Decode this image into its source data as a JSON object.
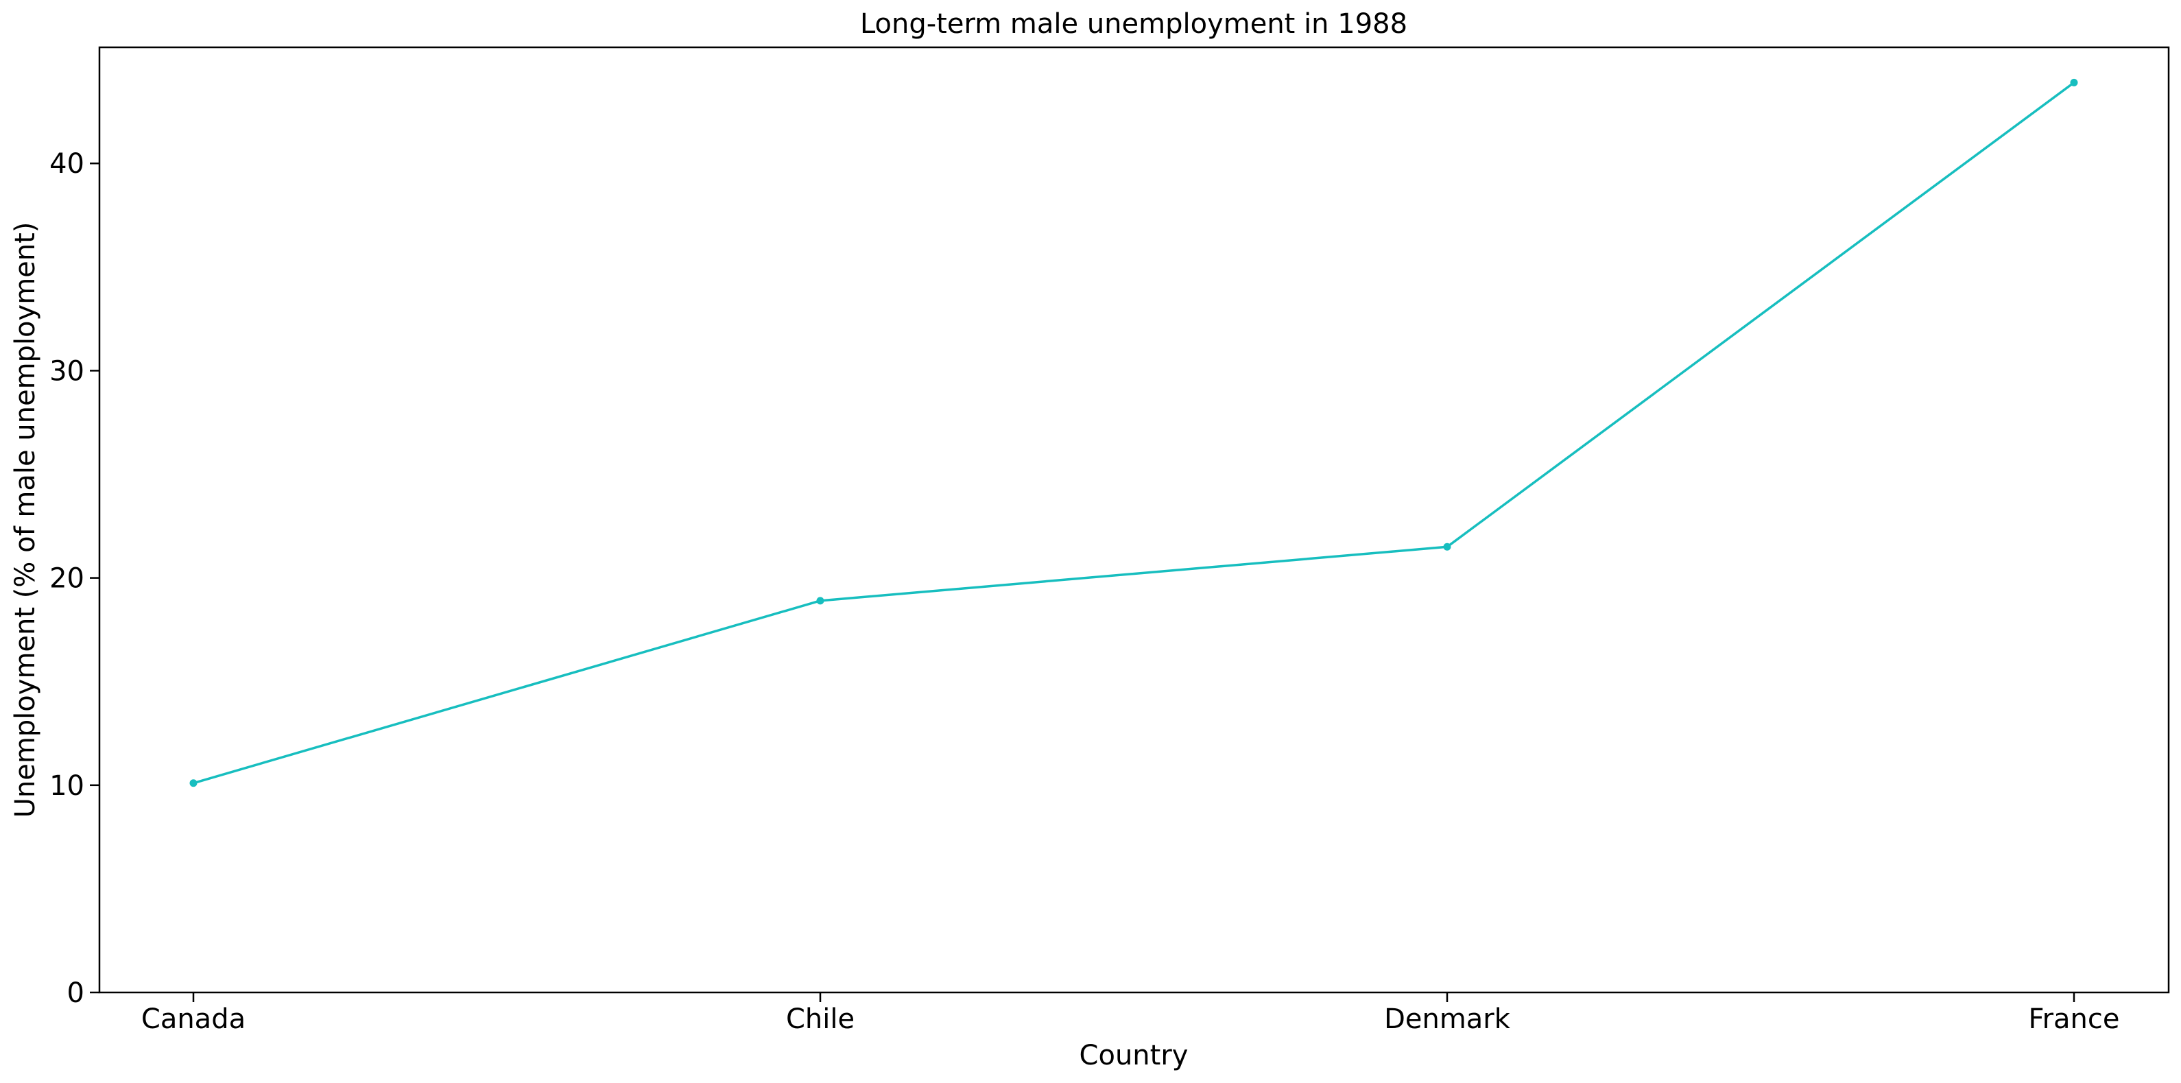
{
  "chart_data": {
    "type": "line",
    "title": "Long-term male unemployment in 1988",
    "xlabel": "Country",
    "ylabel": "Unemployment (% of male unemployment)",
    "categories": [
      "Canada",
      "Chile",
      "Denmark",
      "France"
    ],
    "series": [
      {
        "values": [
          10.1,
          18.9,
          21.5,
          43.9
        ],
        "color": "#17bebf",
        "marker": "circle"
      }
    ],
    "ylim": [
      0,
      45.6
    ],
    "yticks": [
      0,
      10,
      20,
      30,
      40
    ],
    "grid": false,
    "legend": "none"
  }
}
